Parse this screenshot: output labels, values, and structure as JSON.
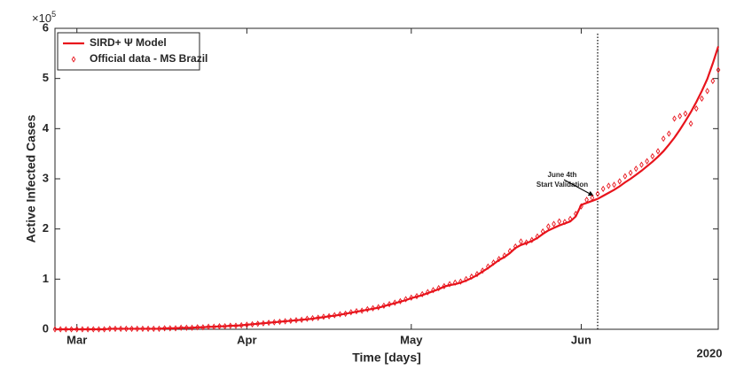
{
  "chart_data": {
    "type": "line",
    "xlabel": "Time [days]",
    "ylabel": "Active Infected Cases",
    "y_multiplier": {
      "base": "×10",
      "exponent": "5"
    },
    "x_secondary_label": "2020",
    "xlim": [
      57,
      178
    ],
    "ylim": [
      0,
      6
    ],
    "xticks": [
      {
        "value": 61,
        "label": "Mar"
      },
      {
        "value": 92,
        "label": "Apr"
      },
      {
        "value": 122,
        "label": "May"
      },
      {
        "value": 153,
        "label": "Jun"
      }
    ],
    "yticks": [
      0,
      1,
      2,
      3,
      4,
      5,
      6
    ],
    "legend": "upper left",
    "validation_x": 156,
    "annotation": [
      "June 4th",
      "Start Validation"
    ],
    "x": [
      57,
      58,
      59,
      60,
      61,
      62,
      63,
      64,
      65,
      66,
      67,
      68,
      69,
      70,
      71,
      72,
      73,
      74,
      75,
      76,
      77,
      78,
      79,
      80,
      81,
      82,
      83,
      84,
      85,
      86,
      87,
      88,
      89,
      90,
      91,
      92,
      93,
      94,
      95,
      96,
      97,
      98,
      99,
      100,
      101,
      102,
      103,
      104,
      105,
      106,
      107,
      108,
      109,
      110,
      111,
      112,
      113,
      114,
      115,
      116,
      117,
      118,
      119,
      120,
      121,
      122,
      123,
      124,
      125,
      126,
      127,
      128,
      129,
      130,
      131,
      132,
      133,
      134,
      135,
      136,
      137,
      138,
      139,
      140,
      141,
      142,
      143,
      144,
      145,
      146,
      147,
      148,
      149,
      150,
      151,
      152,
      153,
      154,
      155,
      156,
      157,
      158,
      159,
      160,
      161,
      162,
      163,
      164,
      165,
      166,
      167,
      168,
      169,
      170,
      171,
      172,
      173,
      174,
      175,
      176,
      177,
      178
    ],
    "series": [
      {
        "name": "SIRD+ Ψ Model",
        "color": "#e8141c",
        "style": "line",
        "values": [
          0,
          0,
          0,
          0,
          0,
          0,
          0,
          0,
          0,
          0,
          0.01,
          0.01,
          0.01,
          0.01,
          0.01,
          0.01,
          0.01,
          0.01,
          0.01,
          0.01,
          0.02,
          0.02,
          0.02,
          0.03,
          0.03,
          0.03,
          0.04,
          0.04,
          0.05,
          0.05,
          0.06,
          0.06,
          0.07,
          0.07,
          0.08,
          0.09,
          0.1,
          0.11,
          0.12,
          0.13,
          0.14,
          0.15,
          0.16,
          0.17,
          0.18,
          0.19,
          0.2,
          0.21,
          0.23,
          0.24,
          0.26,
          0.27,
          0.29,
          0.31,
          0.33,
          0.35,
          0.37,
          0.39,
          0.41,
          0.43,
          0.46,
          0.49,
          0.52,
          0.55,
          0.58,
          0.62,
          0.65,
          0.68,
          0.72,
          0.76,
          0.8,
          0.85,
          0.88,
          0.9,
          0.93,
          0.97,
          1.02,
          1.08,
          1.15,
          1.22,
          1.3,
          1.38,
          1.44,
          1.52,
          1.62,
          1.68,
          1.72,
          1.76,
          1.82,
          1.9,
          1.97,
          2.02,
          2.07,
          2.11,
          2.15,
          2.25,
          2.48,
          2.52,
          2.56,
          2.6,
          2.66,
          2.72,
          2.78,
          2.85,
          2.93,
          3.0,
          3.08,
          3.16,
          3.25,
          3.34,
          3.44,
          3.55,
          3.68,
          3.82,
          3.98,
          4.15,
          4.33,
          4.53,
          4.75,
          4.99,
          5.3,
          5.64
        ]
      },
      {
        "name": "Official data - MS Brazil",
        "color": "#e8141c",
        "style": "diamond",
        "values": [
          0,
          0,
          0,
          0,
          0,
          0,
          0,
          0,
          0,
          0,
          0.01,
          0.01,
          0.01,
          0.01,
          0.01,
          0.01,
          0.01,
          0.01,
          0.01,
          0.01,
          0.02,
          0.02,
          0.02,
          0.03,
          0.03,
          0.03,
          0.04,
          0.04,
          0.05,
          0.05,
          0.06,
          0.06,
          0.07,
          0.07,
          0.08,
          0.09,
          0.1,
          0.11,
          0.12,
          0.13,
          0.14,
          0.15,
          0.16,
          0.17,
          0.18,
          0.19,
          0.21,
          0.22,
          0.23,
          0.25,
          0.26,
          0.28,
          0.3,
          0.31,
          0.34,
          0.36,
          0.37,
          0.4,
          0.42,
          0.44,
          0.47,
          0.5,
          0.53,
          0.56,
          0.6,
          0.63,
          0.66,
          0.7,
          0.74,
          0.78,
          0.82,
          0.86,
          0.9,
          0.93,
          0.95,
          1.0,
          1.05,
          1.1,
          1.17,
          1.25,
          1.33,
          1.4,
          1.47,
          1.56,
          1.65,
          1.75,
          1.73,
          1.78,
          1.85,
          1.95,
          2.05,
          2.1,
          2.15,
          2.14,
          2.2,
          2.3,
          2.45,
          2.58,
          2.62,
          2.7,
          2.8,
          2.86,
          2.88,
          2.95,
          3.05,
          3.12,
          3.2,
          3.28,
          3.35,
          3.45,
          3.55,
          3.8,
          3.9,
          4.2,
          4.25,
          4.3,
          4.1,
          4.4,
          4.6,
          4.75,
          4.95,
          5.17
        ]
      }
    ]
  }
}
